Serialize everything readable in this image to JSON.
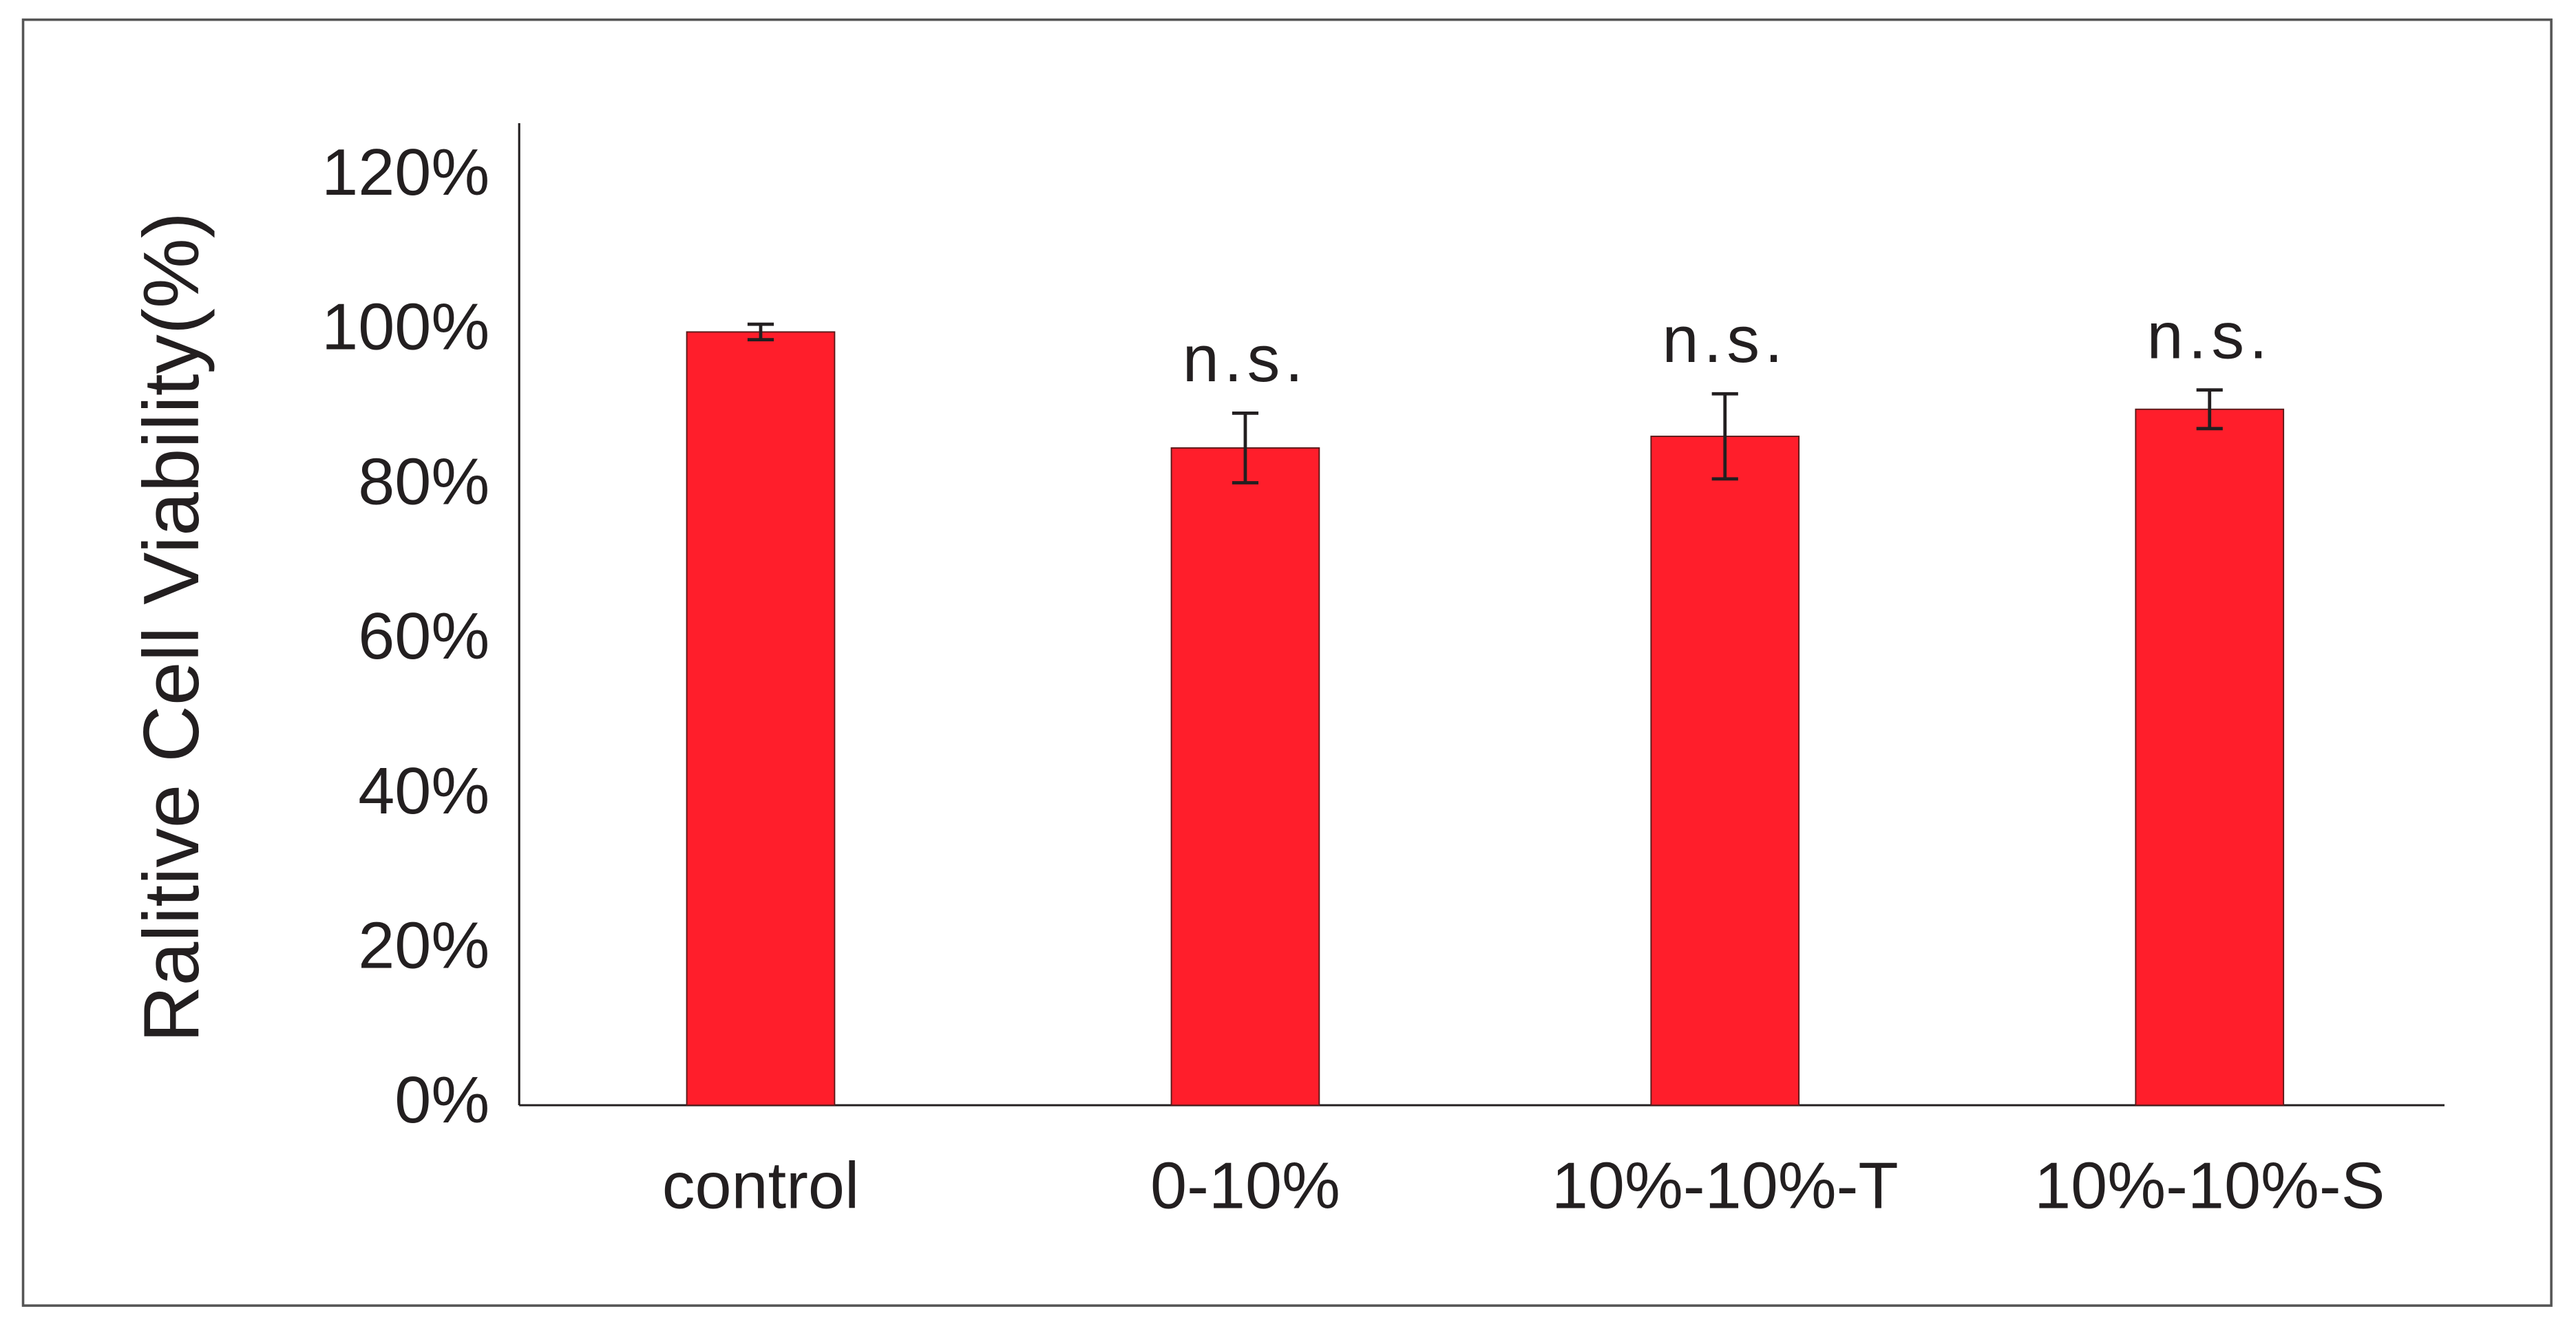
{
  "chart_data": {
    "type": "bar",
    "y_label": "Ralitive Cell Viability(%)",
    "categories": [
      "control",
      "0-10%",
      "10%-10%-T",
      "10%-10%-S"
    ],
    "values": [
      100,
      85,
      86.5,
      90
    ],
    "errors": [
      1,
      4.5,
      5.5,
      2.5
    ],
    "annotations": [
      null,
      "n.s.",
      "n.s.",
      "n.s."
    ],
    "color": "#ff1e2b",
    "ylim": [
      0,
      127
    ],
    "yticks": [
      {
        "value": 0,
        "label": "0%"
      },
      {
        "value": 20,
        "label": "20%"
      },
      {
        "value": 40,
        "label": "40%"
      },
      {
        "value": 60,
        "label": "60%"
      },
      {
        "value": 80,
        "label": "80%"
      },
      {
        "value": 100,
        "label": "100%"
      },
      {
        "value": 120,
        "label": "120%"
      }
    ],
    "grid": false
  }
}
